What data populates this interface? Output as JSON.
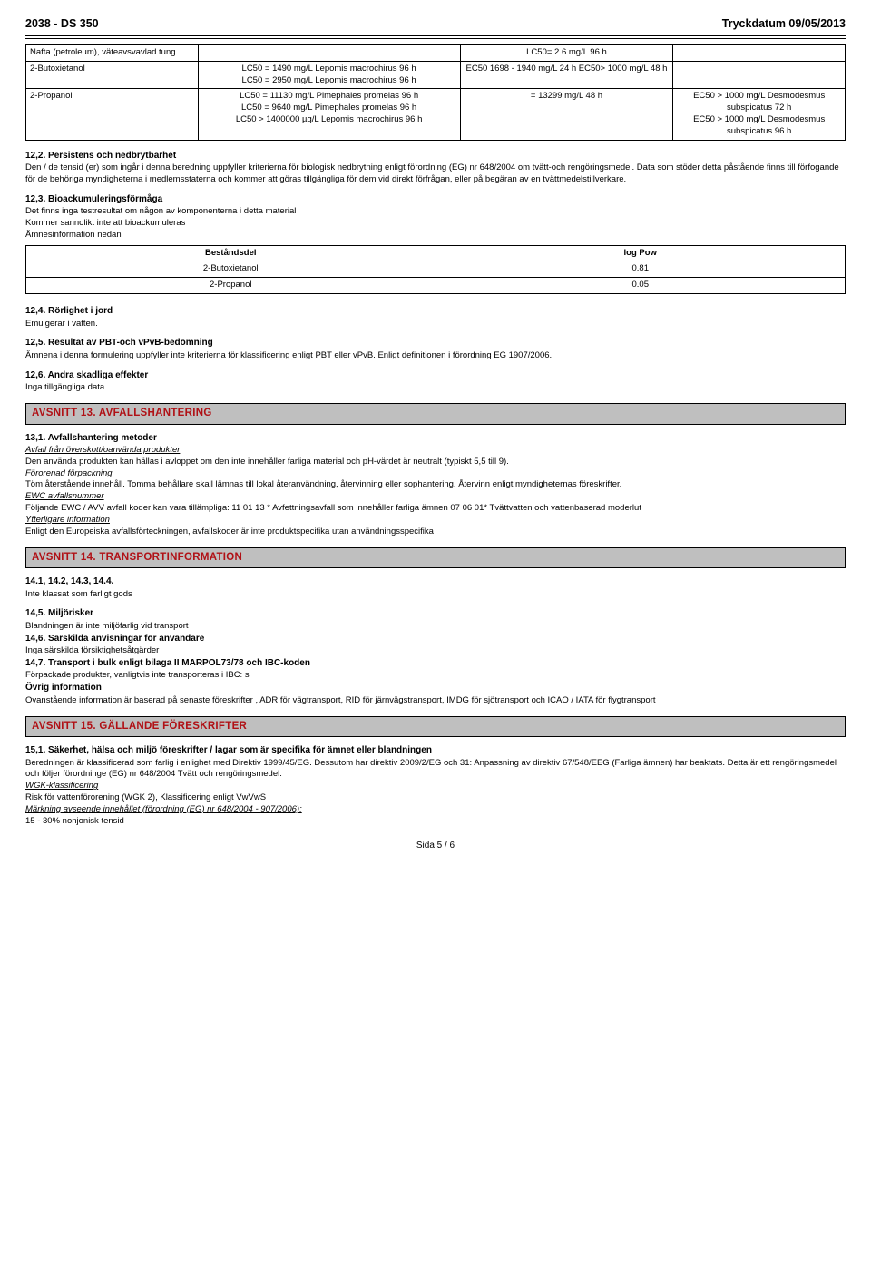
{
  "header": {
    "left": "2038 - DS 350",
    "right": "Tryckdatum 09/05/2013"
  },
  "tox_table": {
    "cols": [
      "c1",
      "c2",
      "c3",
      "c4"
    ],
    "widths": [
      "21%",
      "32%",
      "26%",
      "21%"
    ],
    "rows": [
      {
        "c1": "Nafta (petroleum), väteavsvavlad tung",
        "c2": "",
        "c3": "LC50= 2.6 mg/L 96 h",
        "c4": ""
      },
      {
        "c1": "2-Butoxietanol",
        "c2": "LC50 = 1490 mg/L Lepomis macrochirus 96 h\nLC50 = 2950 mg/L Lepomis macrochirus 96 h",
        "c3": "EC50 1698 - 1940 mg/L 24 h EC50> 1000 mg/L 48 h",
        "c4": ""
      },
      {
        "c1": "2-Propanol",
        "c2": "LC50 = 11130 mg/L Pimephales promelas 96 h\nLC50 = 9640 mg/L Pimephales promelas 96 h\nLC50 > 1400000 µg/L Lepomis macrochirus 96 h",
        "c3": "= 13299 mg/L 48 h",
        "c4": "EC50 > 1000 mg/L Desmodesmus subspicatus 72 h\nEC50 > 1000 mg/L Desmodesmus subspicatus 96 h"
      }
    ]
  },
  "s12_2": {
    "title": "12,2. Persistens och nedbrytbarhet",
    "body": "Den / de tensid (er) som ingår i denna beredning uppfyller kriterierna för biologisk nedbrytning enligt förordning (EG) nr 648/2004 om tvätt-och rengöringsmedel. Data som stöder detta påstående finns till förfogande för de behöriga myndigheterna i medlemsstaterna och kommer att göras tillgängliga för dem vid direkt förfrågan, eller på begäran av en tvättmedelstillverkare."
  },
  "s12_3": {
    "title": "12,3. Bioackumuleringsförmåga",
    "lines": [
      "Det finns inga testresultat om någon av komponenterna i detta material",
      "Kommer sannolikt inte att bioackumuleras",
      "Ämnesinformation nedan"
    ]
  },
  "pow_table": {
    "headers": [
      "Beståndsdel",
      "log Pow"
    ],
    "rows": [
      [
        "2-Butoxietanol",
        "0.81"
      ],
      [
        "2-Propanol",
        "0.05"
      ]
    ]
  },
  "s12_4": {
    "title": "12,4. Rörlighet i jord",
    "body": "Emulgerar i vatten."
  },
  "s12_5": {
    "title": "12,5. Resultat av PBT-och vPvB-bedömning",
    "body": "Ämnena i denna formulering uppfyller inte kriterierna för klassificering enligt PBT eller vPvB. Enligt definitionen i förordning EG 1907/2006."
  },
  "s12_6": {
    "title": "12,6. Andra skadliga effekter",
    "body": "Inga tillgängliga data"
  },
  "banner13": "AVSNITT 13. AVFALLSHANTERING",
  "s13": {
    "title": "13,1. Avfallshantering metoder",
    "sub1": "Avfall från överskott/oanvända produkter",
    "p1": "Den använda produkten kan hällas i avloppet om den inte innehåller farliga material och pH-värdet är neutralt (typiskt 5,5 till 9).",
    "sub2": "Förorenad förpackning",
    "p2": "Töm återstående innehåll. Tomma behållare skall lämnas till lokal återanvändning, återvinning eller sophantering. Återvinn enligt myndigheternas föreskrifter.",
    "sub3": "EWC avfallsnummer",
    "p3": "Följande EWC / AVV avfall koder kan vara tillämpliga: 11 01 13 * Avfettningsavfall som innehåller farliga ämnen 07 06 01* Tvättvatten och vattenbaserad moderlut",
    "sub4": "Ytterligare information",
    "p4": "Enligt den Europeiska avfallsförteckningen, avfallskoder är inte produktspecifika utan användningsspecifika"
  },
  "banner14": "AVSNITT 14. TRANSPORTINFORMATION",
  "s14": {
    "t1": "14.1, 14.2, 14.3, 14.4.",
    "p1": "Inte klassat som farligt gods",
    "t2": "14,5. Miljörisker",
    "p2": "Blandningen är inte miljöfarlig vid transport",
    "t3": "14,6. Särskilda anvisningar för användare",
    "p3": "Inga särskilda försiktighetsåtgärder",
    "t4": "14,7. Transport i bulk enligt bilaga II MARPOL73/78 och IBC-koden",
    "p4": "Förpackade produkter, vanligtvis inte transporteras i IBC: s",
    "t5": "Övrig information",
    "p5": "Ovanstående information är baserad på senaste föreskrifter , ADR för vägtransport, RID för järnvägstransport, IMDG för sjötransport och ICAO / IATA för flygtransport"
  },
  "banner15": "AVSNITT 15. GÄLLANDE FÖRESKRIFTER",
  "s15": {
    "t1": "15,1. Säkerhet, hälsa och miljö föreskrifter / lagar som är specifika för ämnet eller blandningen",
    "p1": "Beredningen är klassificerad som farlig i enlighet med Direktiv 1999/45/EG. Dessutom har direktiv 2009/2/EG och 31: Anpassning av direktiv 67/548/EEG (Farliga ämnen) har beaktats. Detta är ett rengöringsmedel och följer förordninge (EG) nr 648/2004 Tvätt och rengöringsmedel.",
    "sub1": "WGK-klassificering",
    "p2": "Risk för vattenförorening (WGK 2), Klassificering enligt VwVwS",
    "sub2": "Märkning avseende innehållet (förordning (EG) nr 648/2004 - 907/2006):",
    "p3": "15 - 30% nonjonisk tensid"
  },
  "footer": "Sida 5 / 6"
}
